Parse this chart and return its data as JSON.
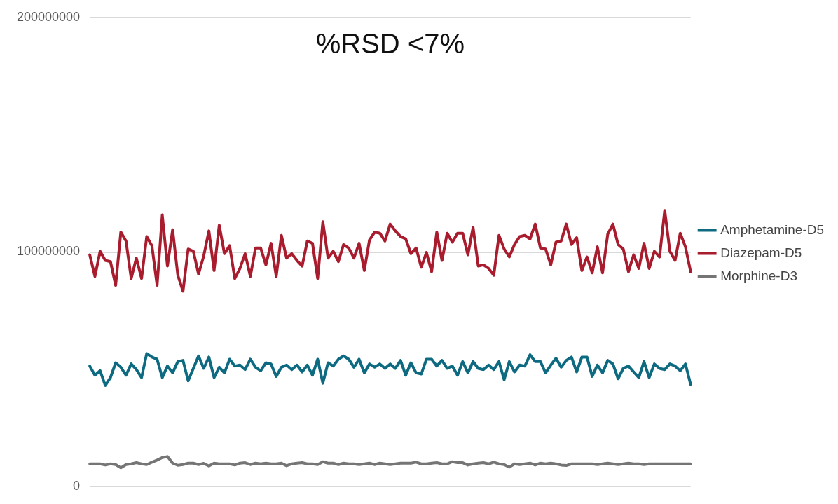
{
  "chart_data": {
    "type": "line",
    "title": "%RSD <7%",
    "categories": [
      null,
      null,
      null,
      null,
      null,
      null,
      null,
      null,
      null,
      null,
      null,
      null,
      null,
      null,
      null,
      null,
      null,
      null,
      null,
      null,
      null,
      null,
      null,
      null,
      null,
      null,
      null,
      null,
      null,
      null,
      null,
      null,
      null,
      null,
      null,
      null,
      null,
      null,
      null,
      null,
      null,
      null,
      null,
      null,
      null,
      null,
      null,
      null,
      null,
      null,
      null,
      null,
      null,
      null,
      null,
      null,
      null,
      null,
      null,
      null,
      null,
      null,
      null,
      null,
      null,
      null,
      null,
      null,
      null,
      null,
      null,
      null,
      null,
      null,
      null,
      null,
      null,
      null,
      null,
      null,
      null,
      null,
      null,
      null,
      null,
      null,
      null,
      null,
      null,
      null,
      null,
      null,
      null,
      null,
      null,
      null,
      null,
      null,
      null,
      null,
      null,
      null,
      null,
      null,
      null,
      null,
      null,
      null,
      null,
      null,
      null,
      null,
      null,
      null,
      null,
      null,
      null
    ],
    "series": [
      {
        "name": "Amphetamine-D5",
        "color": "#0e6a80",
        "values": [
          51400000,
          47500000,
          49400000,
          43100000,
          46500000,
          52800000,
          50900000,
          47500000,
          52300000,
          49900000,
          46500000,
          56700000,
          55200000,
          54300000,
          46500000,
          51400000,
          48500000,
          53300000,
          53800000,
          45100000,
          50400000,
          55700000,
          50400000,
          55200000,
          46500000,
          50900000,
          48500000,
          54300000,
          51400000,
          51800000,
          49900000,
          54300000,
          50900000,
          49400000,
          52800000,
          52300000,
          47000000,
          50900000,
          51800000,
          49900000,
          51800000,
          48900000,
          51800000,
          47500000,
          54300000,
          44100000,
          52800000,
          51400000,
          54300000,
          55700000,
          54300000,
          50900000,
          54300000,
          48500000,
          52300000,
          50900000,
          52300000,
          50400000,
          52300000,
          50400000,
          53800000,
          47500000,
          52800000,
          48500000,
          48000000,
          54300000,
          54300000,
          51400000,
          53800000,
          50400000,
          51400000,
          47500000,
          53300000,
          48500000,
          53300000,
          50400000,
          49900000,
          51800000,
          49900000,
          53300000,
          45600000,
          53300000,
          48900000,
          51800000,
          51400000,
          56200000,
          53300000,
          53300000,
          48500000,
          51800000,
          54700000,
          50900000,
          53800000,
          55200000,
          48900000,
          55200000,
          55200000,
          47000000,
          51800000,
          48500000,
          53800000,
          52300000,
          46000000,
          50400000,
          51400000,
          48900000,
          46500000,
          53300000,
          46500000,
          52300000,
          50400000,
          49900000,
          52300000,
          51400000,
          49400000,
          52300000,
          43600000
        ]
      },
      {
        "name": "Diazepam-D5",
        "color": "#a81c2e",
        "values": [
          98800000,
          89600000,
          100300000,
          96400000,
          95900000,
          85800000,
          108500000,
          104700000,
          88700000,
          97400000,
          88700000,
          106600000,
          102700000,
          85800000,
          115800000,
          94000000,
          109500000,
          90100000,
          83300000,
          101300000,
          100300000,
          90600000,
          98300000,
          109000000,
          92100000,
          111400000,
          99300000,
          102700000,
          88700000,
          93000000,
          99300000,
          89600000,
          101700000,
          101700000,
          94500000,
          103700000,
          89600000,
          107100000,
          97400000,
          99300000,
          96400000,
          94000000,
          104700000,
          103700000,
          88700000,
          112900000,
          97400000,
          100300000,
          95900000,
          103200000,
          101700000,
          97400000,
          103700000,
          92100000,
          105100000,
          108500000,
          108000000,
          104700000,
          111900000,
          109000000,
          106600000,
          105600000,
          99300000,
          101700000,
          93500000,
          99800000,
          91600000,
          108500000,
          96400000,
          108000000,
          104200000,
          108000000,
          108000000,
          98800000,
          110500000,
          94000000,
          94500000,
          93000000,
          90100000,
          107100000,
          101300000,
          97900000,
          103200000,
          106600000,
          107100000,
          105600000,
          111900000,
          101700000,
          101300000,
          94500000,
          104200000,
          104700000,
          111900000,
          103200000,
          106100000,
          92100000,
          97900000,
          91100000,
          102200000,
          91100000,
          107600000,
          111900000,
          103200000,
          101300000,
          91600000,
          98800000,
          93000000,
          103700000,
          93000000,
          100300000,
          97900000,
          117700000,
          100300000,
          96400000,
          108000000,
          102200000,
          91600000
        ]
      },
      {
        "name": "Morphine-D3",
        "color": "#757575",
        "values": [
          9700000,
          9700000,
          9700000,
          9200000,
          9700000,
          9400000,
          8000000,
          9400000,
          9700000,
          10200000,
          9700000,
          9400000,
          10400000,
          11300000,
          12400000,
          12800000,
          10000000,
          9100000,
          9400000,
          10000000,
          10000000,
          9400000,
          9900000,
          8800000,
          10000000,
          9700000,
          9700000,
          9700000,
          9200000,
          10000000,
          10200000,
          9400000,
          10000000,
          9700000,
          10000000,
          9700000,
          9700000,
          10000000,
          8900000,
          9700000,
          10000000,
          10200000,
          9700000,
          9700000,
          9400000,
          10600000,
          10000000,
          10000000,
          9400000,
          10000000,
          9700000,
          9700000,
          9400000,
          9700000,
          10000000,
          9400000,
          10000000,
          9700000,
          9400000,
          9700000,
          10000000,
          10000000,
          10000000,
          10400000,
          9700000,
          9700000,
          10000000,
          10200000,
          9700000,
          9700000,
          10600000,
          10200000,
          10200000,
          9200000,
          9700000,
          10000000,
          10200000,
          9700000,
          10400000,
          9700000,
          9400000,
          8300000,
          9700000,
          9400000,
          9700000,
          10000000,
          9200000,
          10000000,
          9700000,
          10000000,
          9700000,
          9200000,
          9000000,
          9700000,
          9700000,
          9700000,
          9700000,
          9700000,
          9400000,
          9700000,
          10000000,
          9700000,
          9400000,
          9700000,
          10000000,
          9700000,
          9700000,
          9400000,
          9700000,
          9700000,
          9700000,
          9700000,
          9700000,
          9700000,
          9700000,
          9700000,
          9700000
        ]
      }
    ],
    "ylim": [
      0,
      200000000
    ],
    "yticks": [
      0,
      100000000,
      200000000
    ],
    "grid": "y",
    "legend": "right",
    "marker": "none",
    "line_style": "solid",
    "tick_labels": "y"
  }
}
